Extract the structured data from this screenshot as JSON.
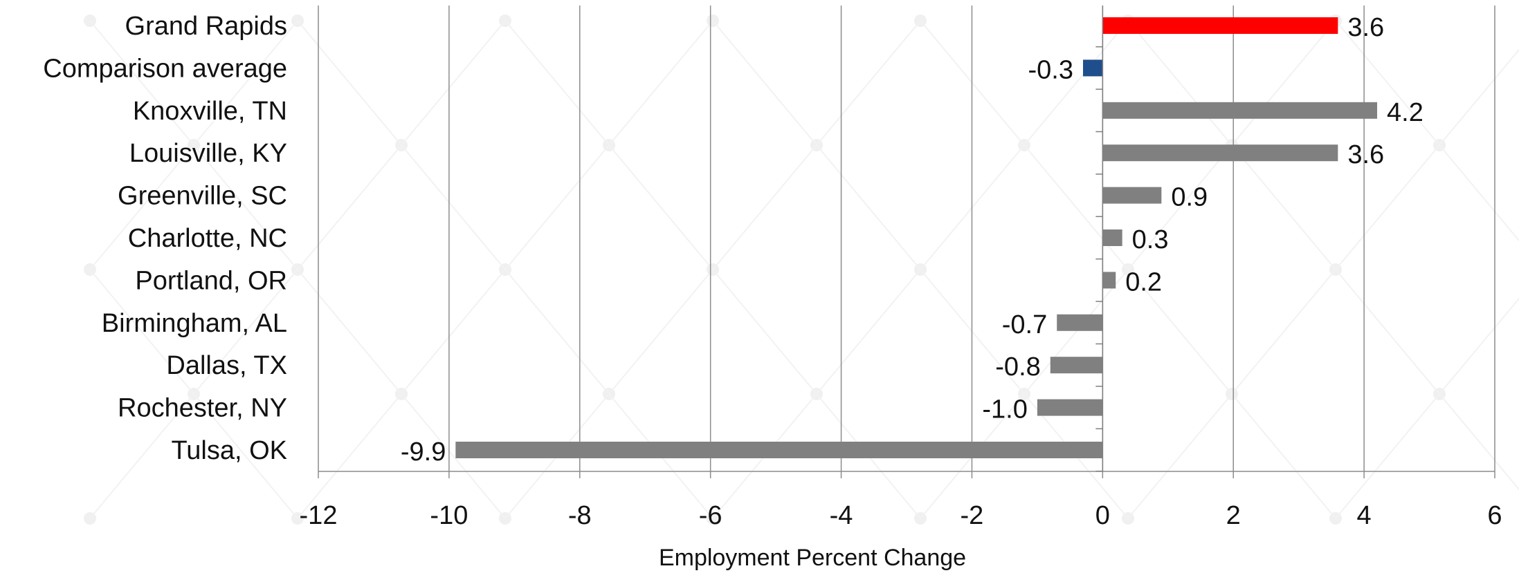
{
  "chart_data": {
    "type": "bar",
    "orientation": "horizontal",
    "categories": [
      "Grand Rapids",
      "Comparison average",
      "Knoxville, TN",
      "Louisville, KY",
      "Greenville, SC",
      "Charlotte, NC",
      "Portland, OR",
      "Birmingham, AL",
      "Dallas, TX",
      "Rochester, NY",
      "Tulsa, OK"
    ],
    "values": [
      3.6,
      -0.3,
      4.2,
      3.6,
      0.9,
      0.3,
      0.2,
      -0.7,
      -0.8,
      -1.0,
      -9.9
    ],
    "value_labels": [
      "3.6",
      "-0.3",
      "4.2",
      "3.6",
      "0.9",
      "0.3",
      "0.2",
      "-0.7",
      "-0.8",
      "-1.0",
      "-9.9"
    ],
    "bar_colors": [
      "#ff0000",
      "#1f4e8c",
      "#808080",
      "#808080",
      "#808080",
      "#808080",
      "#808080",
      "#808080",
      "#808080",
      "#808080",
      "#808080"
    ],
    "xlabel": "Employment Percent Change",
    "ylabel": "",
    "xlim": [
      -12,
      6
    ],
    "xticks": [
      -12,
      -10,
      -8,
      -6,
      -4,
      -2,
      0,
      2,
      4,
      6
    ],
    "xtick_labels": [
      "-12",
      "-10",
      "-8",
      "-6",
      "-4",
      "-2",
      "0",
      "2",
      "4",
      "6"
    ],
    "grid": "vertical",
    "legend": "none"
  }
}
